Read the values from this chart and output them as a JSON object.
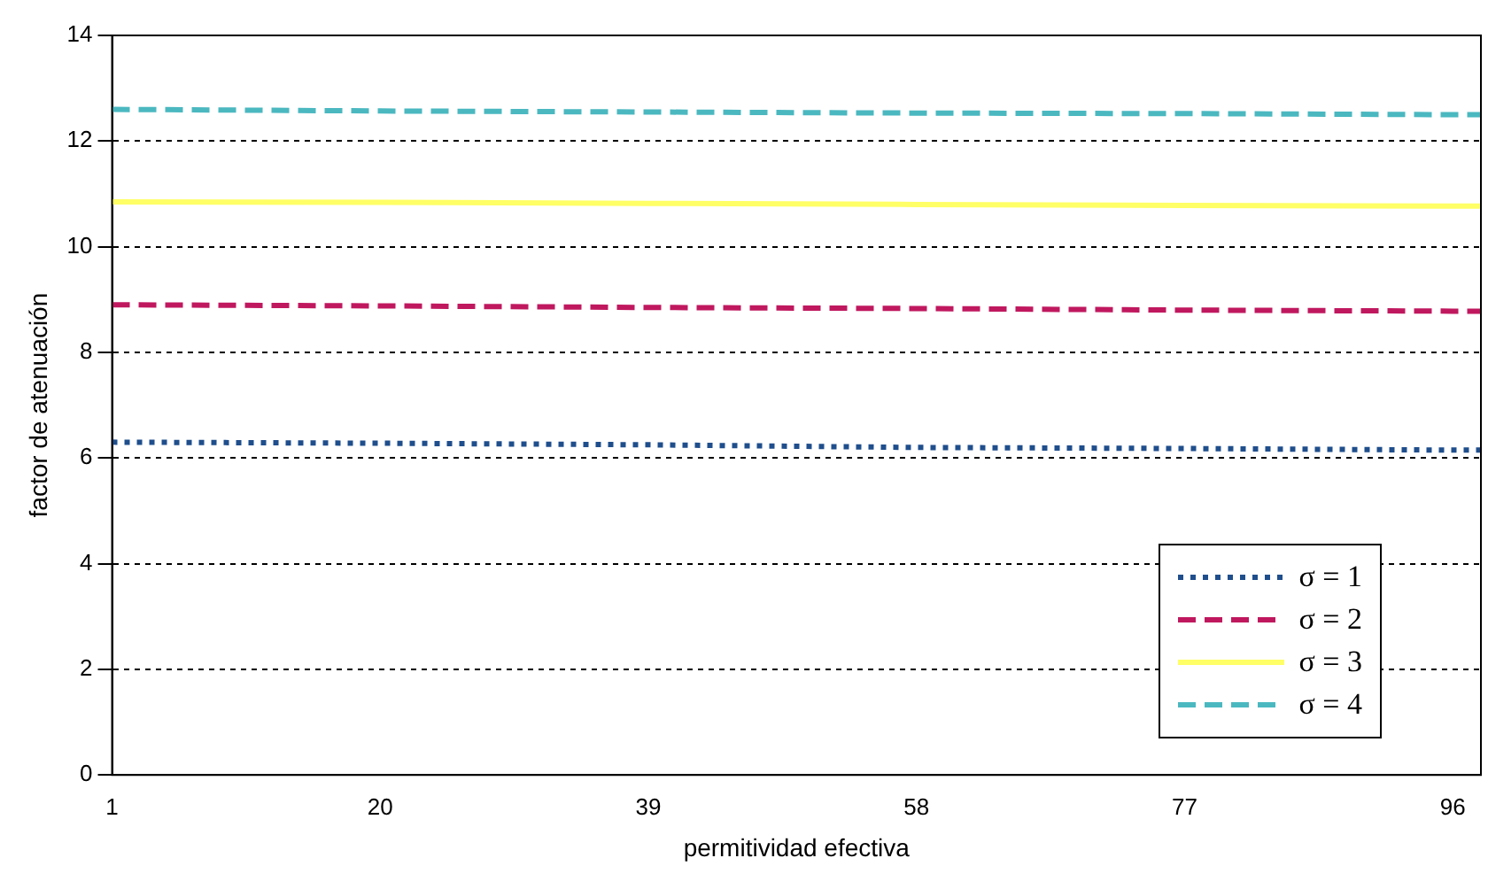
{
  "chart_data": {
    "type": "line",
    "xlabel": "permitividad efectiva",
    "ylabel": "factor de atenuación",
    "x": [
      1,
      20,
      39,
      58,
      77,
      96,
      98
    ],
    "xlim": [
      1,
      98
    ],
    "xticks": [
      1,
      20,
      39,
      58,
      77,
      96
    ],
    "ylim": [
      0,
      14
    ],
    "yticks": [
      0,
      2,
      4,
      6,
      8,
      10,
      12,
      14
    ],
    "grid": "y",
    "legend": "bottom right",
    "marker": "none",
    "series": [
      {
        "name": "σ = 1",
        "color": "#1f4e8c",
        "line_style": "dotted",
        "values": [
          6.3,
          6.28,
          6.25,
          6.2,
          6.18,
          6.15,
          6.15
        ]
      },
      {
        "name": "σ = 2",
        "color": "#c0185f",
        "line_style": "dashed",
        "values": [
          8.9,
          8.88,
          8.85,
          8.83,
          8.8,
          8.78,
          8.78
        ]
      },
      {
        "name": "σ = 3",
        "color": "#ffff66",
        "line_style": "solid",
        "values": [
          10.85,
          10.84,
          10.82,
          10.8,
          10.78,
          10.77,
          10.77
        ]
      },
      {
        "name": "σ = 4",
        "color": "#4bb8c0",
        "line_style": "dashed",
        "values": [
          12.6,
          12.57,
          12.55,
          12.53,
          12.52,
          12.5,
          12.5
        ]
      }
    ]
  }
}
